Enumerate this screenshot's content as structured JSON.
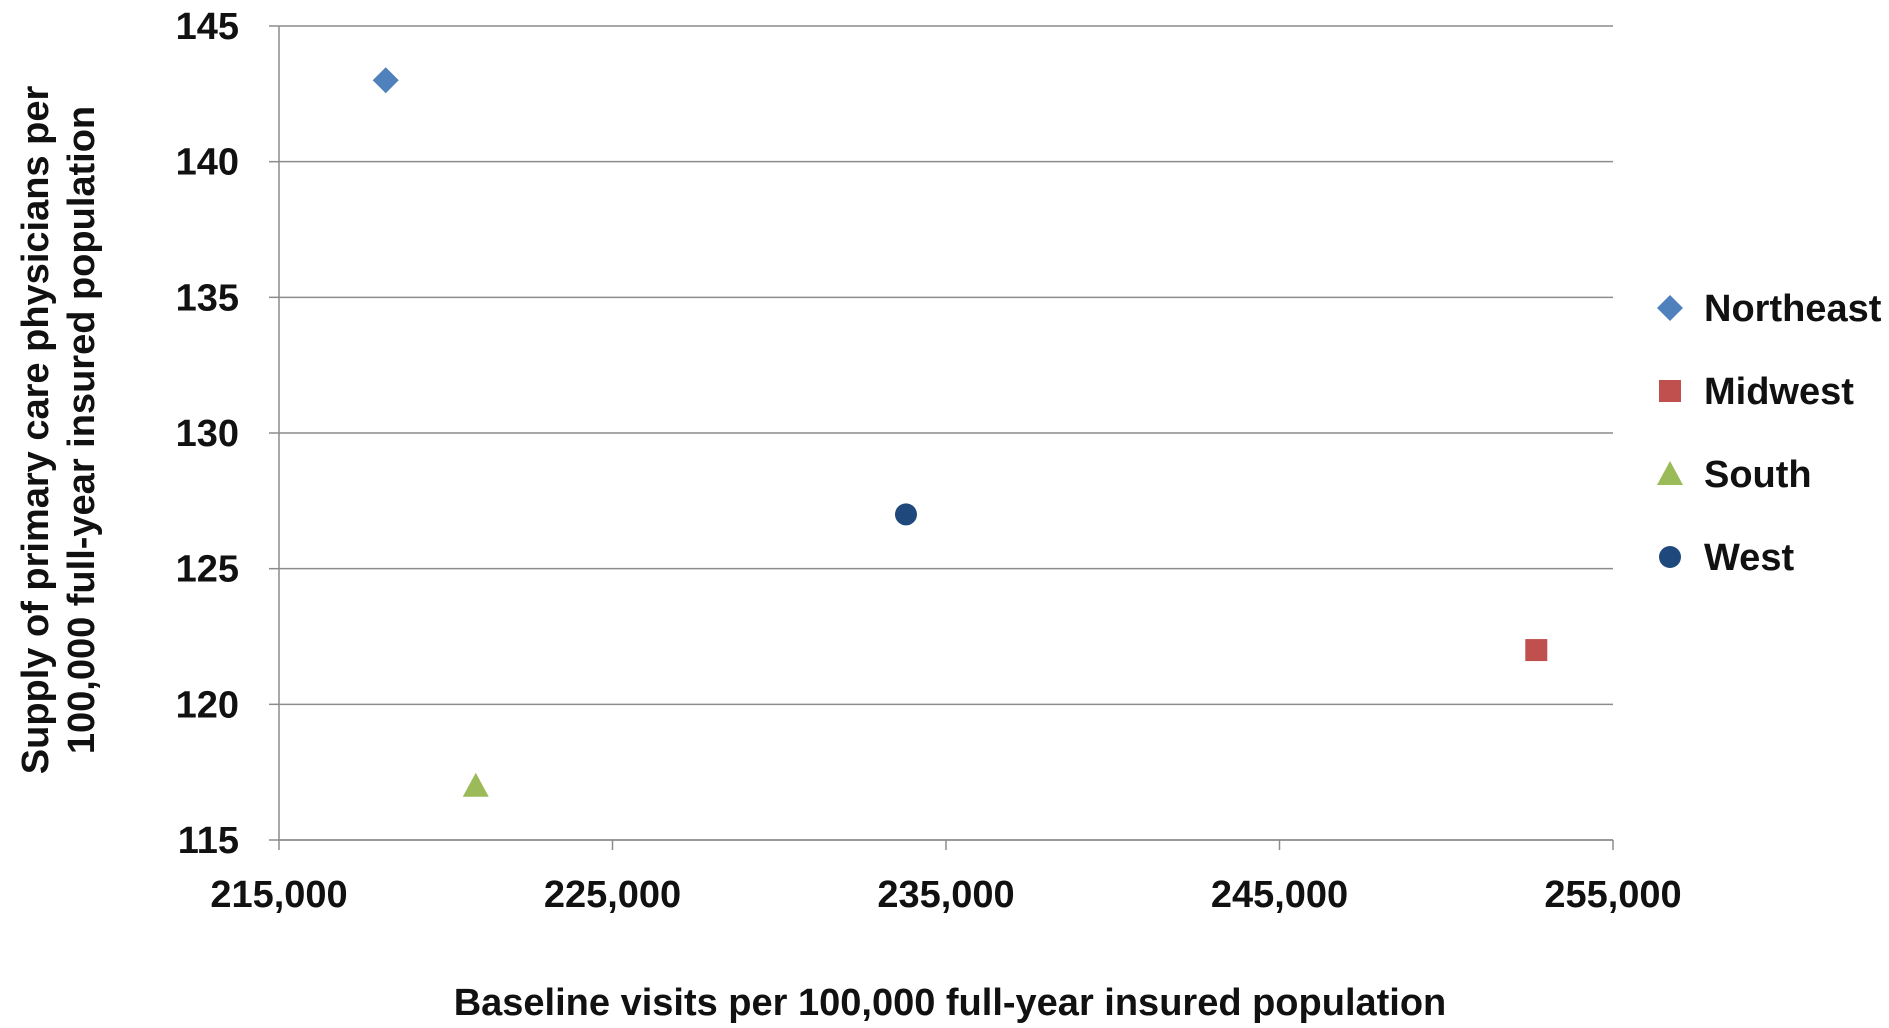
{
  "chart_data": {
    "type": "scatter",
    "title": "",
    "xlabel": "Baseline visits per 100,000 full-year insured population",
    "ylabel": "Supply of primary care physicians per 100,000 full-year insured population",
    "xlim": [
      215000,
      255000
    ],
    "ylim": [
      115,
      145
    ],
    "x_ticks": [
      215000,
      225000,
      235000,
      245000,
      255000
    ],
    "x_tick_labels": [
      "215,000",
      "225,000",
      "235,000",
      "245,000",
      "255,000"
    ],
    "y_ticks": [
      115,
      120,
      125,
      130,
      135,
      140,
      145
    ],
    "y_tick_labels": [
      "115",
      "120",
      "125",
      "130",
      "135",
      "140",
      "145"
    ],
    "grid": "horizontal",
    "legend_position": "right",
    "series": [
      {
        "name": "Northeast",
        "marker": "diamond",
        "color": "#4F81BD",
        "points": [
          {
            "x": 218200,
            "y": 143
          }
        ]
      },
      {
        "name": "Midwest",
        "marker": "square",
        "color": "#C0504D",
        "points": [
          {
            "x": 252700,
            "y": 122
          }
        ]
      },
      {
        "name": "South",
        "marker": "triangle",
        "color": "#9BBB59",
        "points": [
          {
            "x": 220900,
            "y": 117
          }
        ]
      },
      {
        "name": "West",
        "marker": "circle",
        "color": "#1F497D",
        "points": [
          {
            "x": 233800,
            "y": 127
          }
        ]
      }
    ]
  }
}
